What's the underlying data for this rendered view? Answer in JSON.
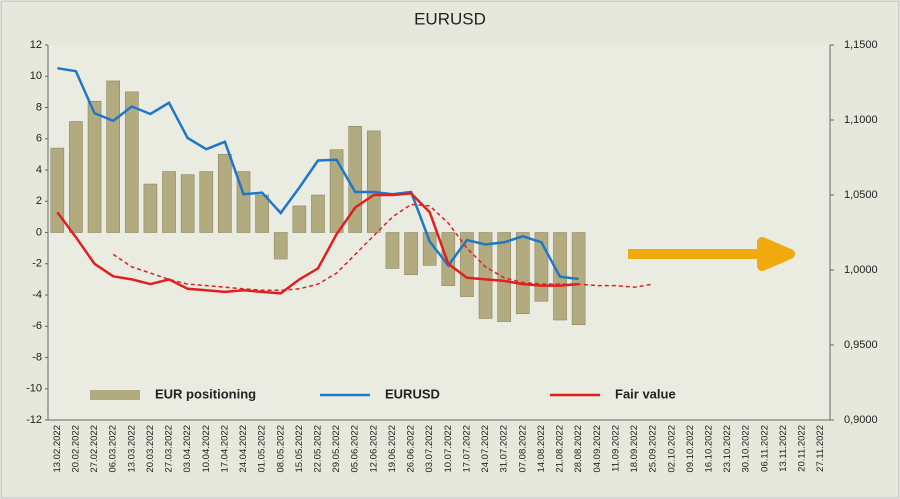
{
  "chart_data": {
    "type": "bar",
    "title": "EURUSD",
    "categories": [
      "13.02.2022",
      "20.02.2022",
      "27.02.2022",
      "06.03.2022",
      "13.03.2022",
      "20.03.2022",
      "27.03.2022",
      "03.04.2022",
      "10.04.2022",
      "17.04.2022",
      "24.04.2022",
      "01.05.2022",
      "08.05.2022",
      "15.05.2022",
      "22.05.2022",
      "29.05.2022",
      "05.06.2022",
      "12.06.2022",
      "19.06.2022",
      "26.06.2022",
      "03.07.2022",
      "10.07.2022",
      "17.07.2022",
      "24.07.2022",
      "31.07.2022",
      "07.08.2022",
      "14.08.2022",
      "21.08.2022",
      "28.08.2022",
      "04.09.2022",
      "11.09.2022",
      "18.09.2022",
      "25.09.2022",
      "02.10.2022",
      "09.10.2022",
      "16.10.2022",
      "23.10.2022",
      "30.10.2022",
      "06.11.2022",
      "13.11.2022",
      "20.11.2022",
      "27.11.2022"
    ],
    "series": [
      {
        "name": "EUR positioning",
        "type": "bar",
        "color": "#b3ab80",
        "values": [
          5.4,
          7.1,
          8.4,
          9.7,
          9.0,
          3.1,
          3.9,
          3.7,
          3.9,
          5.0,
          3.9,
          2.4,
          -1.7,
          1.7,
          2.4,
          5.3,
          6.8,
          6.5,
          -2.3,
          -2.7,
          -2.1,
          -3.4,
          -4.1,
          -5.5,
          -5.7,
          -5.2,
          -4.4,
          -5.6,
          -5.9,
          null,
          null,
          null,
          null,
          null,
          null,
          null,
          null,
          null,
          null,
          null,
          null,
          null
        ]
      },
      {
        "name": "EURUSD",
        "type": "line",
        "axis": "y2",
        "color": "#1f77c8",
        "values": [
          1.1345,
          1.1325,
          1.1045,
          1.0995,
          1.109,
          1.104,
          1.1115,
          1.088,
          1.0805,
          1.0855,
          1.0505,
          1.0515,
          1.038,
          1.055,
          1.073,
          1.0735,
          1.052,
          1.052,
          1.0505,
          1.052,
          1.019,
          1.003,
          1.02,
          1.017,
          1.0185,
          1.0225,
          1.0185,
          0.9955,
          0.994,
          null,
          null,
          null,
          null,
          null,
          null,
          null,
          null,
          null,
          null,
          null,
          null,
          null
        ]
      },
      {
        "name": "Fair value",
        "type": "line",
        "color": "#e02020",
        "values": [
          1.3,
          -0.3,
          -2.0,
          -2.8,
          -3.0,
          -3.3,
          -3.0,
          -3.6,
          -3.7,
          -3.8,
          -3.7,
          -3.8,
          -3.9,
          -3.0,
          -2.3,
          -0.1,
          1.6,
          2.4,
          2.4,
          2.5,
          1.3,
          -2.0,
          -2.9,
          -3.0,
          -3.1,
          -3.3,
          -3.4,
          -3.4,
          -3.3,
          null,
          null,
          null,
          null,
          null,
          null,
          null,
          null,
          null,
          null,
          null,
          null,
          null
        ]
      },
      {
        "type": "line",
        "dashed": true,
        "color": "#e02020",
        "values": [
          null,
          null,
          null,
          -1.4,
          -2.2,
          -2.6,
          -3.0,
          -3.3,
          -3.4,
          -3.5,
          -3.6,
          -3.7,
          -3.7,
          -3.6,
          -3.3,
          -2.6,
          -1.4,
          -0.2,
          1.0,
          1.8,
          1.7,
          0.6,
          -1.0,
          -2.2,
          -2.9,
          -3.2,
          -3.3,
          -3.3,
          -3.3,
          -3.4,
          -3.4,
          -3.5,
          -3.3,
          null,
          null,
          null,
          null,
          null,
          null,
          null,
          null,
          null
        ]
      }
    ],
    "ylim": [
      -12,
      12
    ],
    "yticks": [
      -12,
      -10,
      -8,
      -6,
      -4,
      -2,
      0,
      2,
      4,
      6,
      8,
      10,
      12
    ],
    "y2lim": [
      0.9,
      1.15
    ],
    "y2ticks": [
      {
        "value": 0.9,
        "label": "0,9000"
      },
      {
        "value": 0.95,
        "label": "0,9500"
      },
      {
        "value": 1.0,
        "label": "1,0000"
      },
      {
        "value": 1.05,
        "label": "1,0500"
      },
      {
        "value": 1.1,
        "label": "1,1000"
      },
      {
        "value": 1.15,
        "label": "1,1500"
      }
    ]
  }
}
